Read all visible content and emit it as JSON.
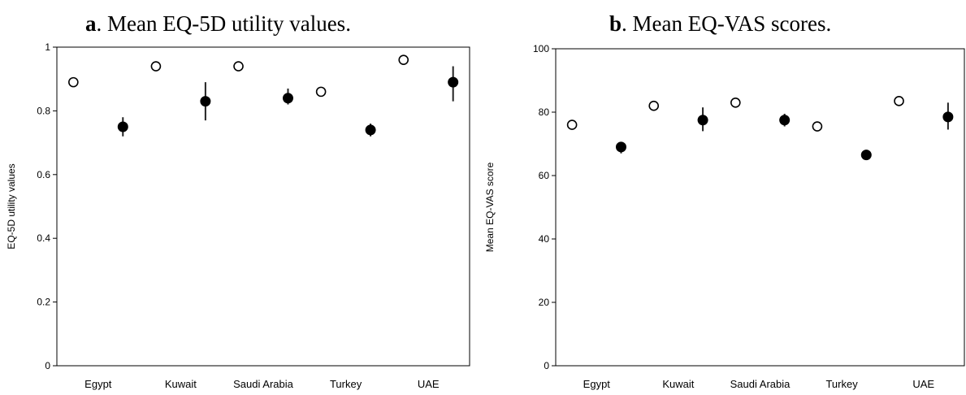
{
  "chart_data": [
    {
      "type": "scatter",
      "title_letter": "a",
      "title_text": ". Mean EQ-5D utility values.",
      "ylabel": "EQ-5D utility values",
      "xlabel": "",
      "categories": [
        "Egypt",
        "Kuwait",
        "Saudi Arabia",
        "Turkey",
        "UAE"
      ],
      "ylim": [
        0,
        1
      ],
      "yticks": [
        0,
        0.2,
        0.4,
        0.6,
        0.8,
        1
      ],
      "ytick_labels": [
        "0",
        "0.2",
        "0.4",
        "0.6",
        "0.8",
        "1"
      ],
      "grid": false,
      "series": [
        {
          "marker": "open-circle",
          "values": [
            0.89,
            0.94,
            0.94,
            0.86,
            0.96
          ]
        },
        {
          "marker": "filled-circle",
          "values": [
            0.75,
            0.83,
            0.84,
            0.74,
            0.89
          ],
          "error_low": [
            0.72,
            0.77,
            0.82,
            0.72,
            0.83
          ],
          "error_high": [
            0.78,
            0.89,
            0.87,
            0.76,
            0.94
          ]
        }
      ]
    },
    {
      "type": "scatter",
      "title_letter": "b",
      "title_text": ". Mean EQ-VAS scores.",
      "ylabel": "Mean EQ-VAS score",
      "xlabel": "",
      "categories": [
        "Egypt",
        "Kuwait",
        "Saudi Arabia",
        "Turkey",
        "UAE"
      ],
      "ylim": [
        0,
        100
      ],
      "yticks": [
        0,
        20,
        40,
        60,
        80,
        100
      ],
      "ytick_labels": [
        "0",
        "20",
        "40",
        "60",
        "80",
        "100"
      ],
      "grid": false,
      "series": [
        {
          "marker": "open-circle",
          "values": [
            76,
            82,
            83,
            75.5,
            83.5
          ]
        },
        {
          "marker": "filled-circle",
          "values": [
            69,
            77.5,
            77.5,
            66.5,
            78.5
          ],
          "error_low": [
            67,
            74,
            75.5,
            66,
            74.5
          ],
          "error_high": [
            70.5,
            81.5,
            79.5,
            67.5,
            83
          ]
        }
      ]
    }
  ]
}
